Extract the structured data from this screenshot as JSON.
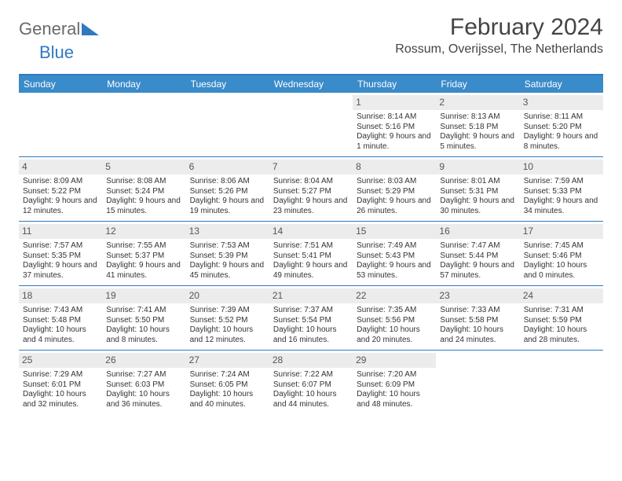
{
  "header": {
    "logo_part1": "General",
    "logo_part2": "Blue",
    "month_title": "February 2024",
    "location": "Rossum, Overijssel, The Netherlands"
  },
  "colors": {
    "accent": "#2f7abf",
    "header_bg": "#3a8bc9",
    "daynum_bg": "#ececec",
    "text": "#333333"
  },
  "weekdays": [
    "Sunday",
    "Monday",
    "Tuesday",
    "Wednesday",
    "Thursday",
    "Friday",
    "Saturday"
  ],
  "weeks": [
    [
      null,
      null,
      null,
      null,
      {
        "n": "1",
        "sr": "Sunrise: 8:14 AM",
        "ss": "Sunset: 5:16 PM",
        "dl": "Daylight: 9 hours and 1 minute."
      },
      {
        "n": "2",
        "sr": "Sunrise: 8:13 AM",
        "ss": "Sunset: 5:18 PM",
        "dl": "Daylight: 9 hours and 5 minutes."
      },
      {
        "n": "3",
        "sr": "Sunrise: 8:11 AM",
        "ss": "Sunset: 5:20 PM",
        "dl": "Daylight: 9 hours and 8 minutes."
      }
    ],
    [
      {
        "n": "4",
        "sr": "Sunrise: 8:09 AM",
        "ss": "Sunset: 5:22 PM",
        "dl": "Daylight: 9 hours and 12 minutes."
      },
      {
        "n": "5",
        "sr": "Sunrise: 8:08 AM",
        "ss": "Sunset: 5:24 PM",
        "dl": "Daylight: 9 hours and 15 minutes."
      },
      {
        "n": "6",
        "sr": "Sunrise: 8:06 AM",
        "ss": "Sunset: 5:26 PM",
        "dl": "Daylight: 9 hours and 19 minutes."
      },
      {
        "n": "7",
        "sr": "Sunrise: 8:04 AM",
        "ss": "Sunset: 5:27 PM",
        "dl": "Daylight: 9 hours and 23 minutes."
      },
      {
        "n": "8",
        "sr": "Sunrise: 8:03 AM",
        "ss": "Sunset: 5:29 PM",
        "dl": "Daylight: 9 hours and 26 minutes."
      },
      {
        "n": "9",
        "sr": "Sunrise: 8:01 AM",
        "ss": "Sunset: 5:31 PM",
        "dl": "Daylight: 9 hours and 30 minutes."
      },
      {
        "n": "10",
        "sr": "Sunrise: 7:59 AM",
        "ss": "Sunset: 5:33 PM",
        "dl": "Daylight: 9 hours and 34 minutes."
      }
    ],
    [
      {
        "n": "11",
        "sr": "Sunrise: 7:57 AM",
        "ss": "Sunset: 5:35 PM",
        "dl": "Daylight: 9 hours and 37 minutes."
      },
      {
        "n": "12",
        "sr": "Sunrise: 7:55 AM",
        "ss": "Sunset: 5:37 PM",
        "dl": "Daylight: 9 hours and 41 minutes."
      },
      {
        "n": "13",
        "sr": "Sunrise: 7:53 AM",
        "ss": "Sunset: 5:39 PM",
        "dl": "Daylight: 9 hours and 45 minutes."
      },
      {
        "n": "14",
        "sr": "Sunrise: 7:51 AM",
        "ss": "Sunset: 5:41 PM",
        "dl": "Daylight: 9 hours and 49 minutes."
      },
      {
        "n": "15",
        "sr": "Sunrise: 7:49 AM",
        "ss": "Sunset: 5:43 PM",
        "dl": "Daylight: 9 hours and 53 minutes."
      },
      {
        "n": "16",
        "sr": "Sunrise: 7:47 AM",
        "ss": "Sunset: 5:44 PM",
        "dl": "Daylight: 9 hours and 57 minutes."
      },
      {
        "n": "17",
        "sr": "Sunrise: 7:45 AM",
        "ss": "Sunset: 5:46 PM",
        "dl": "Daylight: 10 hours and 0 minutes."
      }
    ],
    [
      {
        "n": "18",
        "sr": "Sunrise: 7:43 AM",
        "ss": "Sunset: 5:48 PM",
        "dl": "Daylight: 10 hours and 4 minutes."
      },
      {
        "n": "19",
        "sr": "Sunrise: 7:41 AM",
        "ss": "Sunset: 5:50 PM",
        "dl": "Daylight: 10 hours and 8 minutes."
      },
      {
        "n": "20",
        "sr": "Sunrise: 7:39 AM",
        "ss": "Sunset: 5:52 PM",
        "dl": "Daylight: 10 hours and 12 minutes."
      },
      {
        "n": "21",
        "sr": "Sunrise: 7:37 AM",
        "ss": "Sunset: 5:54 PM",
        "dl": "Daylight: 10 hours and 16 minutes."
      },
      {
        "n": "22",
        "sr": "Sunrise: 7:35 AM",
        "ss": "Sunset: 5:56 PM",
        "dl": "Daylight: 10 hours and 20 minutes."
      },
      {
        "n": "23",
        "sr": "Sunrise: 7:33 AM",
        "ss": "Sunset: 5:58 PM",
        "dl": "Daylight: 10 hours and 24 minutes."
      },
      {
        "n": "24",
        "sr": "Sunrise: 7:31 AM",
        "ss": "Sunset: 5:59 PM",
        "dl": "Daylight: 10 hours and 28 minutes."
      }
    ],
    [
      {
        "n": "25",
        "sr": "Sunrise: 7:29 AM",
        "ss": "Sunset: 6:01 PM",
        "dl": "Daylight: 10 hours and 32 minutes."
      },
      {
        "n": "26",
        "sr": "Sunrise: 7:27 AM",
        "ss": "Sunset: 6:03 PM",
        "dl": "Daylight: 10 hours and 36 minutes."
      },
      {
        "n": "27",
        "sr": "Sunrise: 7:24 AM",
        "ss": "Sunset: 6:05 PM",
        "dl": "Daylight: 10 hours and 40 minutes."
      },
      {
        "n": "28",
        "sr": "Sunrise: 7:22 AM",
        "ss": "Sunset: 6:07 PM",
        "dl": "Daylight: 10 hours and 44 minutes."
      },
      {
        "n": "29",
        "sr": "Sunrise: 7:20 AM",
        "ss": "Sunset: 6:09 PM",
        "dl": "Daylight: 10 hours and 48 minutes."
      },
      null,
      null
    ]
  ]
}
